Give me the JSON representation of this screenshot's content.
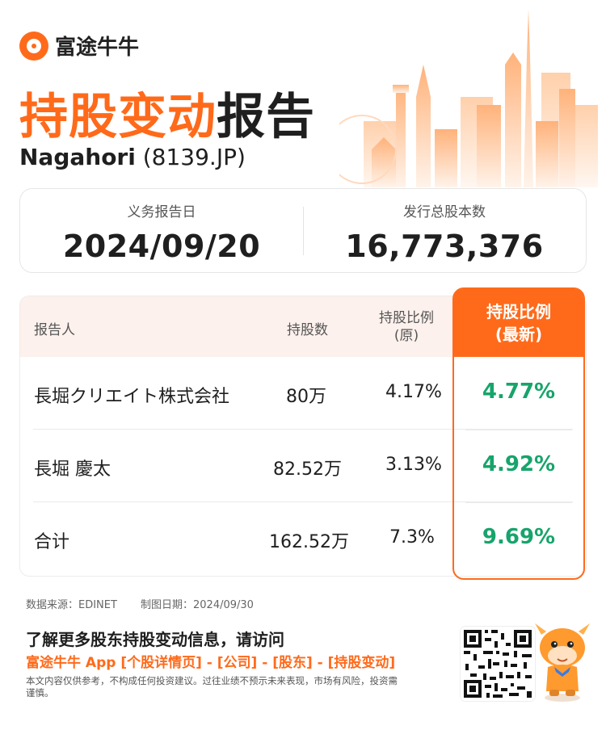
{
  "brand": {
    "name": "富途牛牛"
  },
  "header": {
    "title_highlight": "持股变动",
    "title_rest": "报告",
    "company_name": "Nagahori",
    "company_code": "(8139.JP)"
  },
  "info": {
    "date_label": "义务报告日",
    "date_value": "2024/09/20",
    "shares_label": "发行总股本数",
    "shares_value": "16,773,376"
  },
  "table": {
    "headers": {
      "reporter": "报告人",
      "holdings": "持股数",
      "ratio_orig_line1": "持股比例",
      "ratio_orig_line2": "(原)",
      "ratio_new_line1": "持股比例",
      "ratio_new_line2": "(最新)"
    },
    "rows": [
      {
        "reporter": "長堀クリエイト株式会社",
        "holdings": "80万",
        "ratio_orig": "4.17%",
        "ratio_new": "4.77%"
      },
      {
        "reporter": "長堀 慶太",
        "holdings": "82.52万",
        "ratio_orig": "3.13%",
        "ratio_new": "4.92%"
      },
      {
        "reporter": "合计",
        "holdings": "162.52万",
        "ratio_orig": "7.3%",
        "ratio_new": "9.69%"
      }
    ]
  },
  "footer": {
    "source": "数据来源：EDINET",
    "chart_date": "制图日期：2024/09/30",
    "cta_line1": "了解更多股东持股变动信息，请访问",
    "cta_line2": "富途牛牛 App [个股详情页] - [公司] - [股东] - [持股变动]",
    "disclaimer": "本文内容仅供参考，不构成任何投资建议。过往业绩不预示未来表现，市场有风险，投资需谨慎。"
  },
  "colors": {
    "accent": "#ff6a1a",
    "positive": "#17a46b",
    "header_bg": "#fcf1ec"
  },
  "icons": {
    "logo": "futu-logo-icon",
    "qr": "qr-code-icon",
    "mascot": "bull-mascot-icon"
  }
}
